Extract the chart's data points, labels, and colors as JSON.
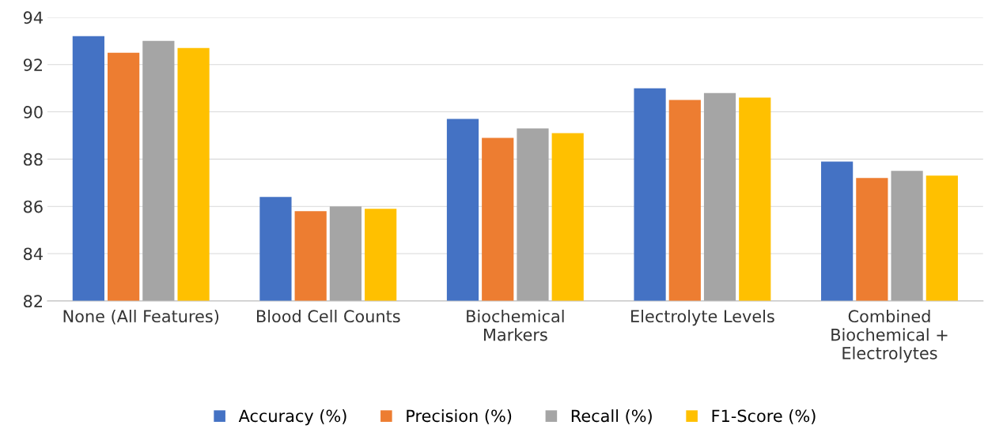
{
  "chart_data": {
    "type": "bar",
    "categories": [
      "None (All Features)",
      "Blood Cell Counts",
      "Biochemical\nMarkers",
      "Electrolyte Levels",
      "Combined\nBiochemical +\nElectrolytes"
    ],
    "series": [
      {
        "name": "Accuracy (%)",
        "color": "#4472c4",
        "values": [
          93.2,
          86.4,
          89.7,
          91.0,
          87.9
        ]
      },
      {
        "name": "Precision (%)",
        "color": "#ed7d31",
        "values": [
          92.5,
          85.8,
          88.9,
          90.5,
          87.2
        ]
      },
      {
        "name": "Recall (%)",
        "color": "#a5a5a5",
        "values": [
          93.0,
          86.0,
          89.3,
          90.8,
          87.5
        ]
      },
      {
        "name": "F1-Score (%)",
        "color": "#ffc000",
        "values": [
          92.7,
          85.9,
          89.1,
          90.6,
          87.3
        ]
      }
    ],
    "ylim": [
      82,
      94
    ],
    "yticks": [
      82,
      84,
      86,
      88,
      90,
      92,
      94
    ],
    "grid": "y",
    "legend": "bottom"
  }
}
